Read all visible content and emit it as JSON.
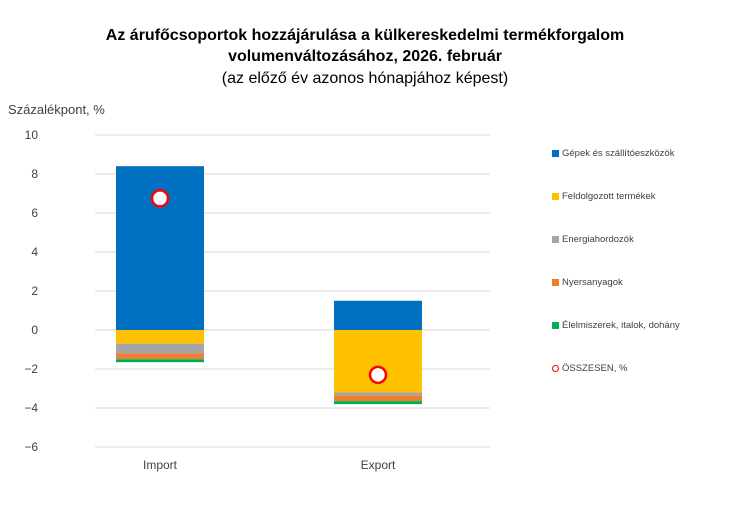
{
  "chart_data": {
    "type": "stacked-bar",
    "title": "Az árufőcsoportok hozzájárulása a külkereskedelmi termékforgalom",
    "title_line2": "volumenváltozásához, 2026. február",
    "subtitle": "(az előző év azonos hónapjához képest)",
    "ylabel": "Százalékpont, %",
    "xlabel": "",
    "ylim": [
      -6,
      10
    ],
    "yticks": [
      10,
      8,
      6,
      4,
      2,
      0,
      -2,
      -4,
      -6
    ],
    "ytick_labels": [
      "10",
      "8",
      "6",
      "4",
      "2",
      "0",
      "−2",
      "−4",
      "−6"
    ],
    "grid": true,
    "legend_position": "right",
    "categories": [
      "Import",
      "Export"
    ],
    "series": [
      {
        "name": "Gépek és szállítóeszközök",
        "color": "#0070c0",
        "values": [
          8.4,
          1.5
        ]
      },
      {
        "name": "Feldolgozott termékek",
        "color": "#ffc000",
        "values": [
          -0.7,
          -3.2
        ]
      },
      {
        "name": "Energiahordozók",
        "color": "#a5a5a5",
        "values": [
          -0.5,
          -0.15
        ]
      },
      {
        "name": "Nyersanyagok",
        "color": "#ed7d31",
        "values": [
          -0.3,
          -0.3
        ]
      },
      {
        "name": "Élelmiszerek, italok, dohány",
        "color": "#00b050",
        "values": [
          -0.15,
          -0.15
        ]
      }
    ],
    "total": {
      "name": "ÖSSZESEN, %",
      "color": "#ff0000",
      "values": [
        6.75,
        -2.3
      ]
    }
  }
}
